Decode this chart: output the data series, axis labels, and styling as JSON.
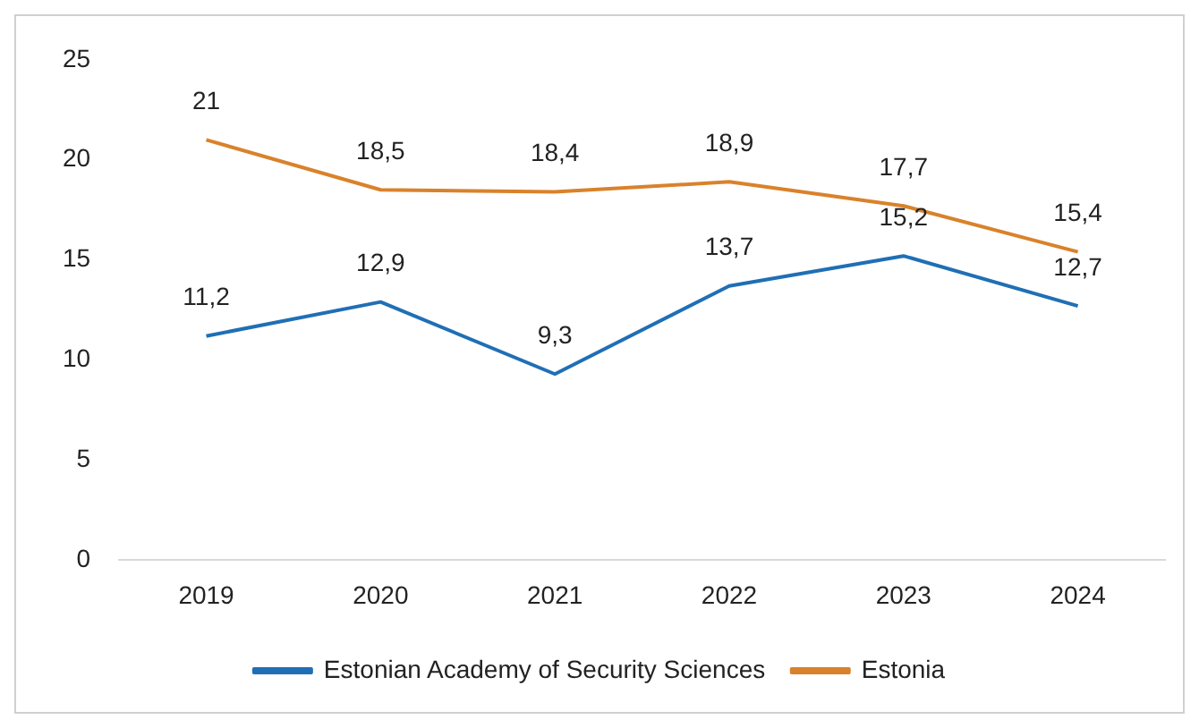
{
  "chart_data": {
    "type": "line",
    "categories": [
      "2019",
      "2020",
      "2021",
      "2022",
      "2023",
      "2024"
    ],
    "series": [
      {
        "name": "Estonian Academy of Security Sciences",
        "color": "#1f6fb5",
        "values": [
          11.2,
          12.9,
          9.3,
          13.7,
          15.2,
          12.7
        ],
        "value_labels": [
          "11,2",
          "12,9",
          "9,3",
          "13,7",
          "15,2",
          "12,7"
        ]
      },
      {
        "name": "Estonia",
        "color": "#d9822b",
        "values": [
          21,
          18.5,
          18.4,
          18.9,
          17.7,
          15.4
        ],
        "value_labels": [
          "21",
          "18,5",
          "18,4",
          "18,9",
          "17,7",
          "15,4"
        ]
      }
    ],
    "ylim": [
      0,
      25
    ],
    "yticks": [
      0,
      5,
      10,
      15,
      20,
      25
    ],
    "grid": false,
    "legend": "bottom",
    "marker": "none",
    "line_style": "solid"
  }
}
